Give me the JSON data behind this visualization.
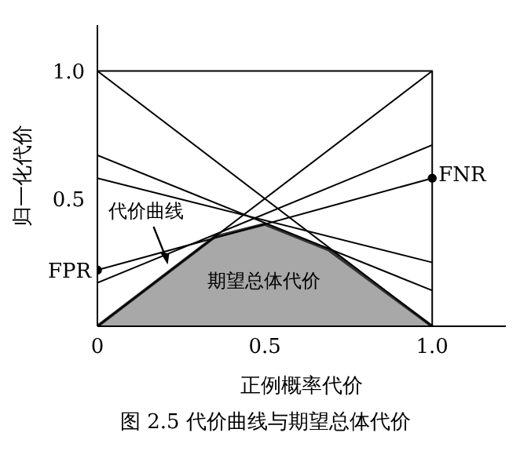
{
  "chart_data": {
    "type": "line",
    "title": "图 2.5  代价曲线与期望总体代价",
    "xlabel": "正例概率代价",
    "ylabel": "归一化代价",
    "xlim": [
      0,
      1.22
    ],
    "ylim": [
      0,
      1.18
    ],
    "xticks": [
      {
        "value": 0,
        "label": "0"
      },
      0.5,
      {
        "value": 1,
        "label": "1.0"
      }
    ],
    "yticks": [
      0.5,
      {
        "value": 1,
        "label": "1.0"
      }
    ],
    "series": [
      {
        "type": "area",
        "color": "#a8a8a8",
        "x": [
          0,
          0.35,
          0.5,
          0.69,
          1
        ],
        "values": [
          0,
          0.35,
          0.4,
          0.3,
          0
        ]
      },
      {
        "color": "#000000",
        "x": [
          0,
          1,
          1
        ],
        "values": [
          1,
          1,
          0
        ]
      },
      {
        "color": "#000000",
        "x": [
          0,
          1
        ],
        "values": [
          1,
          0
        ]
      },
      {
        "color": "#000000",
        "x": [
          0,
          1
        ],
        "values": [
          0,
          1
        ]
      },
      {
        "color": "#000000",
        "x": [
          0,
          1
        ],
        "values": [
          0.67,
          0.14
        ]
      },
      {
        "color": "#000000",
        "x": [
          0,
          1
        ],
        "values": [
          0.58,
          0.25
        ]
      },
      {
        "color": "#000000",
        "x": [
          0,
          1
        ],
        "values": [
          0.17,
          0.71
        ]
      },
      {
        "color": "#000000",
        "x": [
          0,
          1
        ],
        "values": [
          0.22,
          0.58
        ],
        "marker": "circle"
      }
    ],
    "annotations": [
      {
        "text": "FPR",
        "x": 0,
        "y": 0.22
      },
      {
        "text": "FNR",
        "x": 1,
        "y": 0.58
      },
      {
        "text": "代价曲线",
        "x": 0.21,
        "y": 0.23
      },
      "期望总体代价"
    ]
  }
}
